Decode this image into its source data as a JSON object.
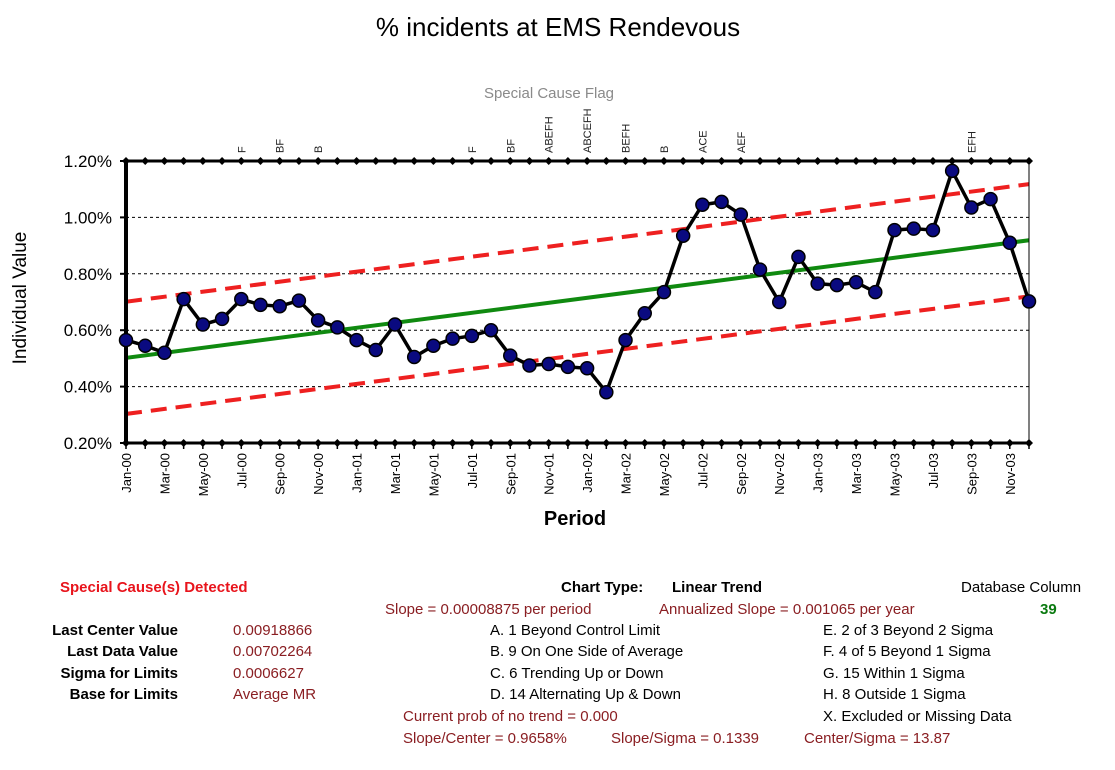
{
  "chart_data": {
    "type": "line",
    "title": "% incidents at EMS Rendevous",
    "xlabel": "Period",
    "ylabel": "Individual Value",
    "special_cause_label": "Special Cause Flag",
    "ylim": [
      0.002,
      0.012
    ],
    "y_ticks": [
      0.002,
      0.004,
      0.006,
      0.008,
      0.01,
      0.012
    ],
    "y_tick_labels": [
      "0.20%",
      "0.40%",
      "0.60%",
      "0.80%",
      "1.00%",
      "1.20%"
    ],
    "x": [
      "Jan-00",
      "Feb-00",
      "Mar-00",
      "Apr-00",
      "May-00",
      "Jun-00",
      "Jul-00",
      "Aug-00",
      "Sep-00",
      "Oct-00",
      "Nov-00",
      "Dec-00",
      "Jan-01",
      "Feb-01",
      "Mar-01",
      "Apr-01",
      "May-01",
      "Jun-01",
      "Jul-01",
      "Aug-01",
      "Sep-01",
      "Oct-01",
      "Nov-01",
      "Dec-01",
      "Jan-02",
      "Feb-02",
      "Mar-02",
      "Apr-02",
      "May-02",
      "Jun-02",
      "Jul-02",
      "Aug-02",
      "Sep-02",
      "Oct-02",
      "Nov-02",
      "Dec-02",
      "Jan-03",
      "Feb-03",
      "Mar-03",
      "Apr-03",
      "May-03",
      "Jun-03",
      "Jul-03",
      "Aug-03",
      "Sep-03",
      "Oct-03",
      "Nov-03",
      "Dec-03"
    ],
    "x_tick_labels": [
      "Jan-00",
      "Mar-00",
      "May-00",
      "Jul-00",
      "Sep-00",
      "Nov-00",
      "Jan-01",
      "Mar-01",
      "May-01",
      "Jul-01",
      "Sep-01",
      "Nov-01",
      "Jan-02",
      "Mar-02",
      "May-02",
      "Jul-02",
      "Sep-02",
      "Nov-02",
      "Jan-03",
      "Mar-03",
      "May-03",
      "Jul-03",
      "Sep-03",
      "Nov-03"
    ],
    "values": [
      0.00565,
      0.00545,
      0.0052,
      0.0071,
      0.0062,
      0.0064,
      0.0071,
      0.0069,
      0.00685,
      0.00705,
      0.00635,
      0.0061,
      0.00565,
      0.0053,
      0.0062,
      0.00505,
      0.00545,
      0.0057,
      0.0058,
      0.006,
      0.0051,
      0.00475,
      0.0048,
      0.0047,
      0.00465,
      0.0038,
      0.00565,
      0.0066,
      0.00735,
      0.00935,
      0.01045,
      0.01055,
      0.0101,
      0.00815,
      0.007,
      0.0086,
      0.00765,
      0.0076,
      0.0077,
      0.00735,
      0.00955,
      0.0096,
      0.00955,
      0.01165,
      0.01035,
      0.01065,
      0.0091,
      0.00702
    ],
    "series": [
      {
        "name": "Individual Value",
        "color": "#000000",
        "marker_color": "#0a0a80"
      },
      {
        "name": "Center Line",
        "color": "#108a10",
        "start": 0.00502,
        "end": 0.00919
      },
      {
        "name": "Upper Limit",
        "color": "#ee2020",
        "start": 0.00701,
        "end": 0.01118
      },
      {
        "name": "Lower Limit",
        "color": "#ee2020",
        "start": 0.00303,
        "end": 0.0072
      }
    ],
    "flags": [
      {
        "period": "Jul-00",
        "label": "F"
      },
      {
        "period": "Sep-00",
        "label": "BF"
      },
      {
        "period": "Nov-00",
        "label": "B"
      },
      {
        "period": "Jul-01",
        "label": "F"
      },
      {
        "period": "Sep-01",
        "label": "BF"
      },
      {
        "period": "Nov-01",
        "label": "ABEFH"
      },
      {
        "period": "Jan-02",
        "label": "ABCEFH"
      },
      {
        "period": "Mar-02",
        "label": "BEFH"
      },
      {
        "period": "May-02",
        "label": "B"
      },
      {
        "period": "Jul-02",
        "label": "ACE"
      },
      {
        "period": "Sep-02",
        "label": "AEF"
      },
      {
        "period": "Sep-03",
        "label": "EFH"
      }
    ],
    "grid": true
  },
  "summary": {
    "special_cause": "Special Cause(s) Detected",
    "chart_type_label": "Chart Type:",
    "chart_type_value": "Linear Trend",
    "database_column_label": "Database Column",
    "database_column_value": "39",
    "slope": "Slope = 0.00008875 per period",
    "annualized_slope": "Annualized Slope = 0.001065 per year",
    "stats": [
      {
        "label": "Last Center Value",
        "value": "0.00918866"
      },
      {
        "label": "Last Data Value",
        "value": "0.00702264"
      },
      {
        "label": "Sigma for Limits",
        "value": "0.0006627"
      },
      {
        "label": "Base for Limits",
        "value": "Average MR"
      }
    ],
    "rules_left": [
      "A. 1 Beyond Control Limit",
      "B. 9 On One Side of Average",
      "C. 6 Trending Up or Down",
      "D. 14 Alternating  Up & Down"
    ],
    "rules_right": [
      "E. 2 of 3 Beyond 2 Sigma",
      "F. 4 of 5 Beyond 1 Sigma",
      "G. 15 Within 1 Sigma",
      "H. 8 Outside 1 Sigma",
      "X. Excluded or Missing Data"
    ],
    "prob_no_trend": "Current prob of no trend = 0.000",
    "slope_center": "Slope/Center = 0.9658%",
    "slope_sigma": "Slope/Sigma = 0.1339",
    "center_sigma": "Center/Sigma = 13.87"
  }
}
